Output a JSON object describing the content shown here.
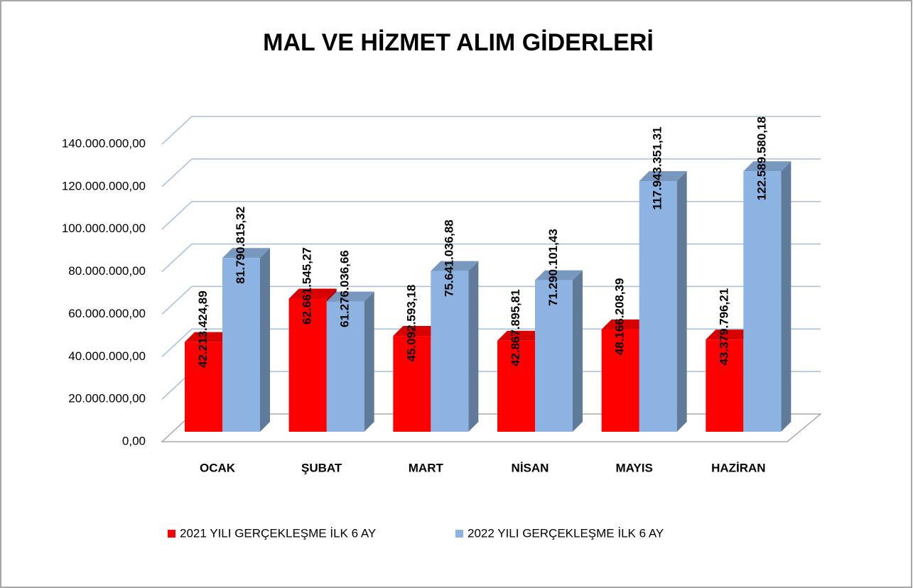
{
  "chart_data": {
    "type": "bar3d",
    "title": "MAL VE HİZMET ALIM GİDERLERİ",
    "categories": [
      "OCAK",
      "ŞUBAT",
      "MART",
      "NİSAN",
      "MAYIS",
      "HAZİRAN"
    ],
    "series": [
      {
        "name": "2021 YILI GERÇEKLEŞME İLK 6 AY",
        "color": "#ff0000",
        "values": [
          42213424.89,
          62661545.27,
          45092593.18,
          42867895.81,
          48166208.39,
          43379796.21
        ],
        "value_labels": [
          "42.213.424,89",
          "62.661.545,27",
          "45.092.593,18",
          "42.867.895,81",
          "48.166.208,39",
          "43.379.796,21"
        ]
      },
      {
        "name": "2022 YILI GERÇEKLEŞME İLK 6 AY",
        "color": "#8db3e2",
        "values": [
          81790815.32,
          61276036.66,
          75641036.88,
          71290101.43,
          117943351.31,
          122589580.18
        ],
        "value_labels": [
          "81.790.815,32",
          "61.276.036,66",
          "75.641.036,88",
          "71.290.101,43",
          "117.943.351,31",
          "122.589.580,18"
        ]
      }
    ],
    "ylim": [
      0,
      140000000
    ],
    "yticks": [
      {
        "value": 0,
        "label": "0,00"
      },
      {
        "value": 20000000,
        "label": "20.000.000,00"
      },
      {
        "value": 40000000,
        "label": "40.000.000,00"
      },
      {
        "value": 60000000,
        "label": "60.000.000,00"
      },
      {
        "value": 80000000,
        "label": "80.000.000,00"
      },
      {
        "value": 100000000,
        "label": "100.000.000,00"
      },
      {
        "value": 120000000,
        "label": "120.000.000,00"
      },
      {
        "value": 140000000,
        "label": "140.000.000,00"
      }
    ],
    "grid": true
  }
}
